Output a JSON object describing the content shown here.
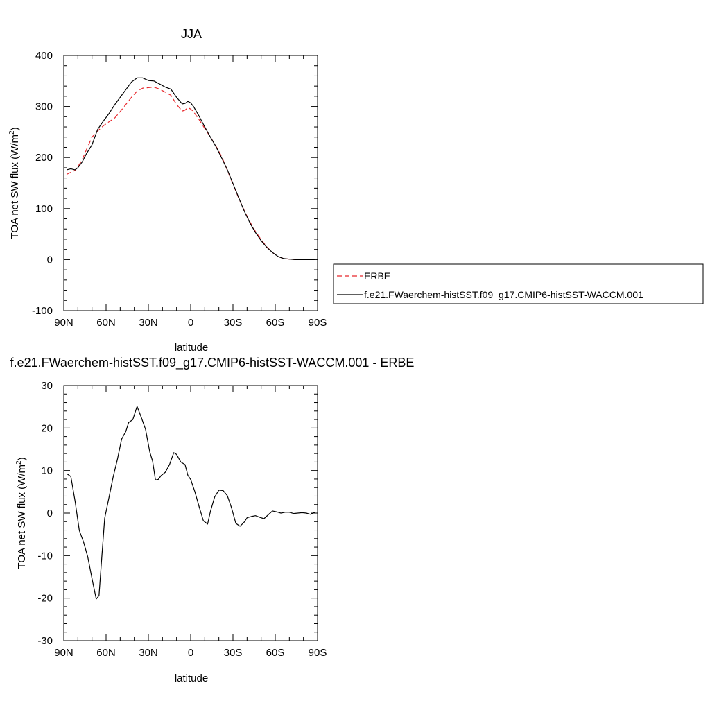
{
  "chart_data": [
    {
      "type": "line",
      "title": "JJA",
      "xlabel": "latitude",
      "ylabel": "TOA net SW flux (W/m",
      "ylabel_sup": "2",
      "ylabel_end": ")",
      "xlim": [
        90,
        -90
      ],
      "ylim": [
        -100,
        400
      ],
      "xticks": [
        90,
        60,
        30,
        0,
        -30,
        -60,
        -90
      ],
      "xtick_labels": [
        "90N",
        "60N",
        "30N",
        "0",
        "30S",
        "60S",
        "90S"
      ],
      "yticks": [
        -100,
        0,
        100,
        200,
        300,
        400
      ],
      "ytick_labels": [
        "-100",
        "0",
        "100",
        "200",
        "300",
        "400"
      ],
      "grid": false,
      "legend_position": "right",
      "series": [
        {
          "name": "ERBE",
          "color": "#e8262b",
          "dash": "dashed",
          "x": [
            88,
            85,
            82,
            80,
            77,
            74,
            70,
            66,
            62,
            58,
            54,
            50,
            46,
            42,
            38,
            34,
            30,
            26,
            22,
            18,
            14,
            10,
            6,
            4,
            2,
            0,
            -2,
            -6,
            -10,
            -14,
            -18,
            -22,
            -26,
            -30,
            -34,
            -38,
            -42,
            -46,
            -50,
            -54,
            -58,
            -62,
            -66,
            -70,
            -74,
            -78,
            -82,
            -86,
            -88
          ],
          "y": [
            167,
            171,
            175,
            182,
            195,
            215,
            240,
            252,
            262,
            270,
            277,
            290,
            304,
            318,
            330,
            336,
            337,
            338,
            334,
            328,
            322,
            304,
            291,
            293,
            298,
            295,
            290,
            274,
            257,
            240,
            222,
            202,
            175,
            148,
            121,
            96,
            74,
            55,
            39,
            25,
            14,
            6,
            2,
            1,
            0,
            0,
            0,
            0,
            0
          ]
        },
        {
          "name": "f.e21.FWaerchem-histSST.f09_g17.CMIP6-histSST-WACCM.001",
          "color": "#000000",
          "dash": "solid",
          "x": [
            88,
            85,
            82,
            80,
            77,
            74,
            70,
            66,
            62,
            58,
            54,
            50,
            46,
            42,
            38,
            34,
            30,
            26,
            22,
            18,
            14,
            10,
            6,
            4,
            2,
            0,
            -2,
            -6,
            -10,
            -14,
            -18,
            -22,
            -26,
            -30,
            -34,
            -38,
            -42,
            -46,
            -50,
            -54,
            -58,
            -62,
            -66,
            -70,
            -74,
            -78,
            -82,
            -86,
            -88
          ],
          "y": [
            176,
            178,
            176,
            180,
            191,
            207,
            225,
            255,
            271,
            286,
            303,
            318,
            333,
            348,
            356,
            356,
            351,
            350,
            344,
            338,
            334,
            318,
            305,
            306,
            310,
            307,
            300,
            281,
            260,
            240,
            221,
            199,
            176,
            149,
            122,
            95,
            72,
            53,
            37,
            24,
            14,
            6,
            2,
            1,
            0,
            0,
            0,
            0,
            0
          ]
        }
      ]
    },
    {
      "type": "line",
      "title": "f.e21.FWaerchem-histSST.f09_g17.CMIP6-histSST-WACCM.001 - ERBE",
      "xlabel": "latitude",
      "ylabel": "TOA net SW flux (W/m",
      "ylabel_sup": "2",
      "ylabel_end": ")",
      "xlim": [
        90,
        -90
      ],
      "ylim": [
        -30,
        30
      ],
      "xticks": [
        90,
        60,
        30,
        0,
        -30,
        -60,
        -90
      ],
      "xtick_labels": [
        "90N",
        "60N",
        "30N",
        "0",
        "30S",
        "60S",
        "90S"
      ],
      "yticks": [
        -30,
        -20,
        -10,
        0,
        10,
        20,
        30
      ],
      "ytick_labels": [
        "-30",
        "-20",
        "-10",
        "0",
        "10",
        "20",
        "30"
      ],
      "grid": false,
      "series": [
        {
          "color": "#000000",
          "dash": "solid",
          "x": [
            88,
            85,
            82,
            79,
            76,
            73,
            70,
            67,
            65,
            63,
            61,
            58,
            55,
            52,
            49,
            46,
            44,
            41,
            38,
            35,
            32,
            29,
            27,
            25,
            23,
            21,
            18,
            15,
            12,
            10,
            7,
            4,
            2,
            0,
            -3,
            -6,
            -9,
            -12,
            -14,
            -17,
            -20,
            -23,
            -26,
            -29,
            -32,
            -35,
            -38,
            -40,
            -43,
            -46,
            -49,
            -52,
            -55,
            -58,
            -61,
            -64,
            -67,
            -70,
            -73,
            -76,
            -79,
            -82,
            -85,
            -88
          ],
          "y": [
            9.3,
            8.6,
            2.8,
            -4.1,
            -6.8,
            -10.3,
            -15.4,
            -20.2,
            -19.4,
            -10.2,
            -1.2,
            3.6,
            8.5,
            12.6,
            17.4,
            19.2,
            21.3,
            22.0,
            25.1,
            22.5,
            19.7,
            14.4,
            12.2,
            7.8,
            7.9,
            8.8,
            9.6,
            11.4,
            14.2,
            13.8,
            12.0,
            11.4,
            8.9,
            7.9,
            5.0,
            1.5,
            -1.8,
            -2.6,
            0.4,
            3.8,
            5.4,
            5.3,
            4.1,
            1.2,
            -2.4,
            -3.1,
            -2.1,
            -1.1,
            -0.8,
            -0.6,
            -1.0,
            -1.3,
            -0.4,
            0.5,
            0.3,
            0.0,
            0.2,
            0.2,
            -0.1,
            0.0,
            0.1,
            0.0,
            -0.3,
            0.2
          ]
        }
      ]
    }
  ]
}
